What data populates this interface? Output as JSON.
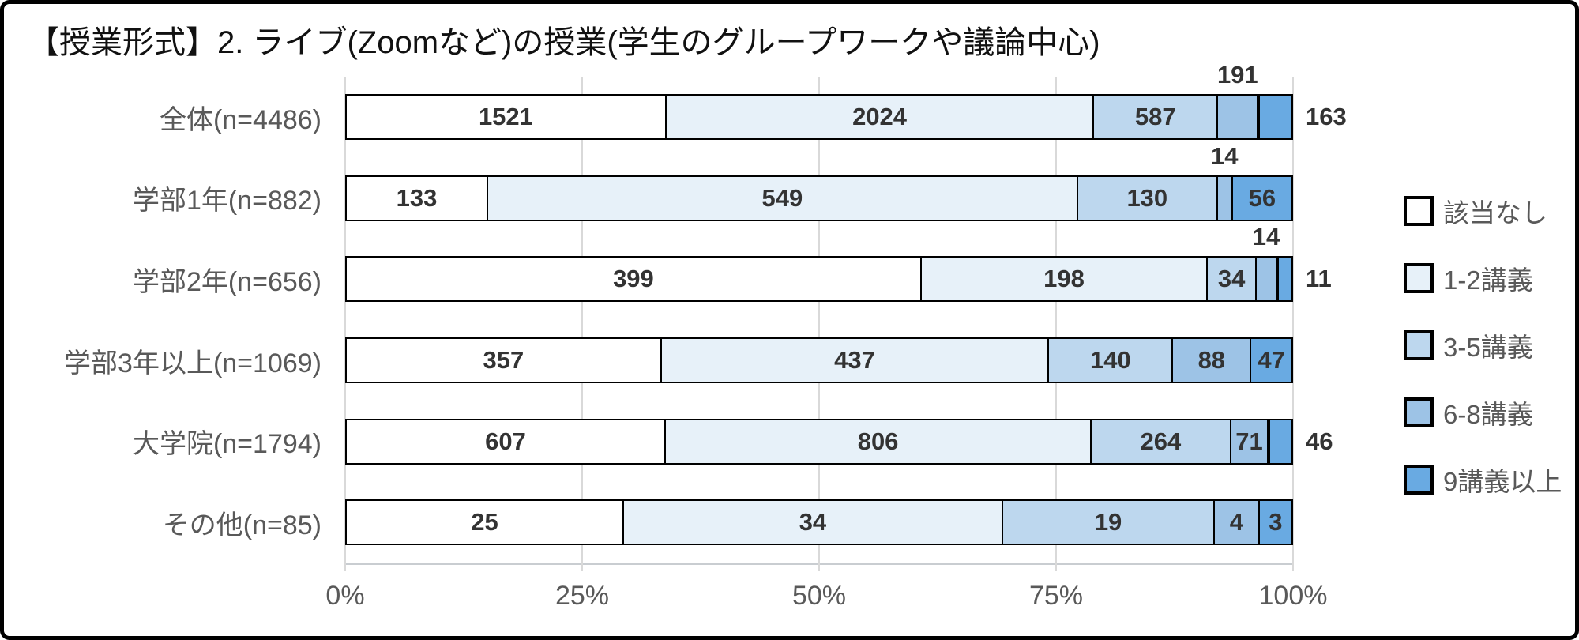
{
  "title": "【授業形式】2. ライブ(Zoomなど)の授業(学生のグループワークや議論中心)",
  "chart_data": {
    "type": "bar",
    "orientation": "horizontal",
    "stacked": true,
    "percent_scaled": true,
    "title": "【授業形式】2. ライブ(Zoomなど)の授業(学生のグループワークや議論中心)",
    "x_axis": {
      "ticks": [
        "0%",
        "25%",
        "50%",
        "75%",
        "100%"
      ],
      "range": [
        0,
        100
      ],
      "grid": true
    },
    "legend": {
      "position": "right",
      "entries": [
        "該当なし",
        "1-2講義",
        "3-5講義",
        "6-8講義",
        "9講義以上"
      ]
    },
    "series_colors": [
      "#FFFFFF",
      "#E7F1F9",
      "#BDD7EE",
      "#9DC3E6",
      "#69AAE2"
    ],
    "categories": [
      "全体(n=4486)",
      "学部1年(n=882)",
      "学部2年(n=656)",
      "学部3年以上(n=1069)",
      "大学院(n=1794)",
      "その他(n=85)"
    ],
    "rows": [
      {
        "label": "全体(n=4486)",
        "n": 4486,
        "values": [
          1521,
          2024,
          587,
          191,
          163
        ],
        "label_positions": [
          "inside",
          "inside",
          "inside",
          "above",
          "right"
        ]
      },
      {
        "label": "学部1年(n=882)",
        "n": 882,
        "values": [
          133,
          549,
          130,
          14,
          56
        ],
        "label_positions": [
          "inside",
          "inside",
          "inside",
          "above",
          "inside"
        ]
      },
      {
        "label": "学部2年(n=656)",
        "n": 656,
        "values": [
          399,
          198,
          34,
          14,
          11
        ],
        "label_positions": [
          "inside",
          "inside",
          "inside",
          "above",
          "right"
        ]
      },
      {
        "label": "学部3年以上(n=1069)",
        "n": 1069,
        "values": [
          357,
          437,
          140,
          88,
          47
        ],
        "label_positions": [
          "inside",
          "inside",
          "inside",
          "inside",
          "inside"
        ]
      },
      {
        "label": "大学院(n=1794)",
        "n": 1794,
        "values": [
          607,
          806,
          264,
          71,
          46
        ],
        "label_positions": [
          "inside",
          "inside",
          "inside",
          "inside",
          "right"
        ]
      },
      {
        "label": "その他(n=85)",
        "n": 85,
        "values": [
          25,
          34,
          19,
          4,
          3
        ],
        "label_positions": [
          "inside",
          "inside",
          "inside",
          "inside",
          "inside"
        ]
      }
    ]
  }
}
